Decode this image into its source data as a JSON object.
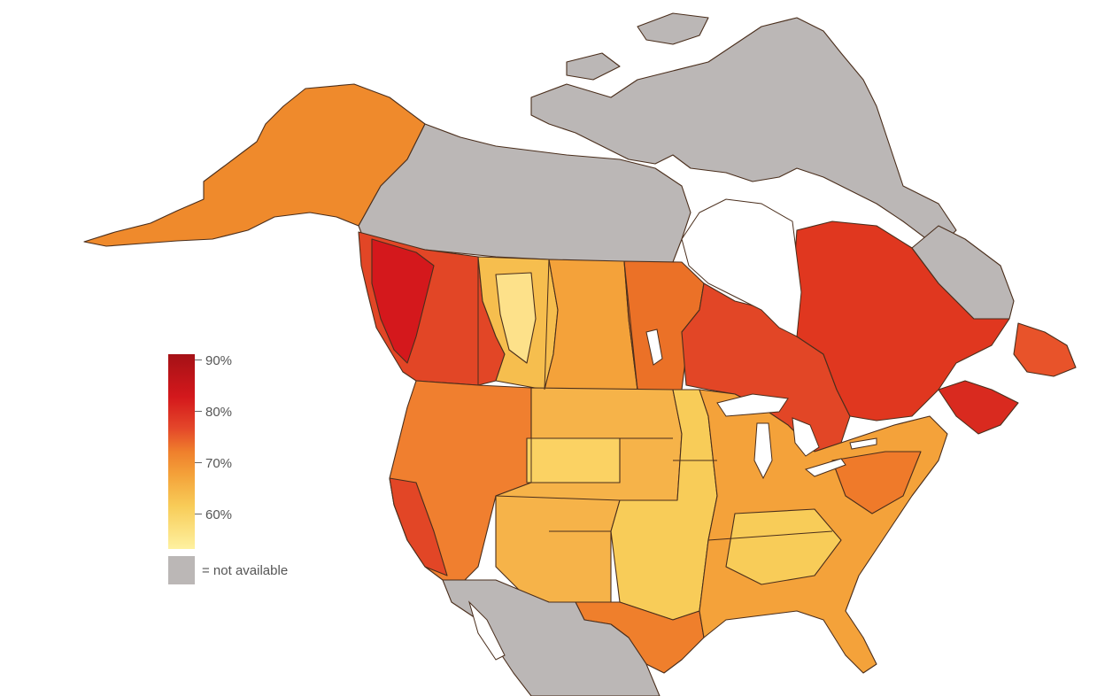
{
  "legend": {
    "ticks": [
      "90%",
      "80%",
      "70%",
      "60%"
    ],
    "not_available_label": "= not available"
  },
  "colors": {
    "scale_90": "#a51116",
    "scale_80": "#d4181c",
    "scale_70": "#ef7f2c",
    "scale_60": "#f8cc58",
    "scale_low": "#fef1a0",
    "not_available": "#bbb7b6"
  }
}
